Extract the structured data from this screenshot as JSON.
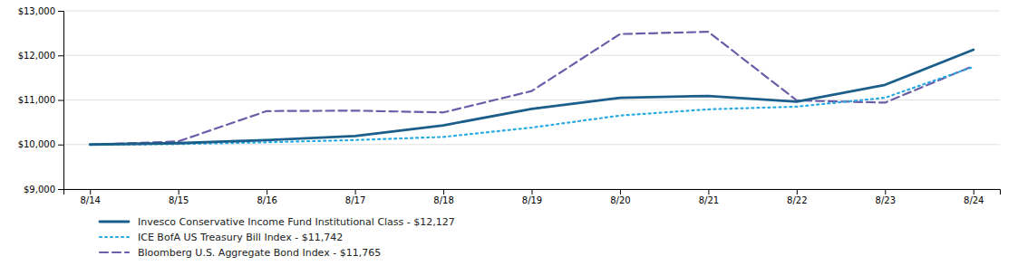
{
  "chart_data": {
    "type": "line",
    "categories": [
      "8/14",
      "8/15",
      "8/16",
      "8/17",
      "8/18",
      "8/19",
      "8/20",
      "8/21",
      "8/22",
      "8/23",
      "8/24"
    ],
    "series": [
      {
        "name": "Invesco Conservative Income Fund Institutional Class - $12,127",
        "color": "#1B5E8A",
        "line_style": "solid",
        "values": [
          10000,
          10030,
          10100,
          10190,
          10430,
          10800,
          11050,
          11090,
          10960,
          11340,
          12127
        ]
      },
      {
        "name": "ICE BofA US Treasury Bill Index - $11,742",
        "color": "#29ABE2",
        "line_style": "dotted",
        "values": [
          9995,
          10010,
          10050,
          10100,
          10170,
          10380,
          10650,
          10790,
          10850,
          11050,
          11742
        ]
      },
      {
        "name": "Bloomberg U.S. Aggregate Bond Index - $11,765",
        "color": "#6B5EA8",
        "line_style": "dashed",
        "values": [
          9995,
          10070,
          10750,
          10760,
          10720,
          11200,
          12480,
          12530,
          10990,
          10940,
          11765
        ]
      }
    ],
    "ylim": [
      9000,
      13000
    ],
    "yticks": [
      {
        "value": 9000,
        "label": "$9,000"
      },
      {
        "value": 10000,
        "label": "$10,000"
      },
      {
        "value": 11000,
        "label": "$11,000"
      },
      {
        "value": 12000,
        "label": "$12,000"
      },
      {
        "value": 13000,
        "label": "$13,000"
      }
    ],
    "grid": true,
    "legend": "bottom"
  }
}
